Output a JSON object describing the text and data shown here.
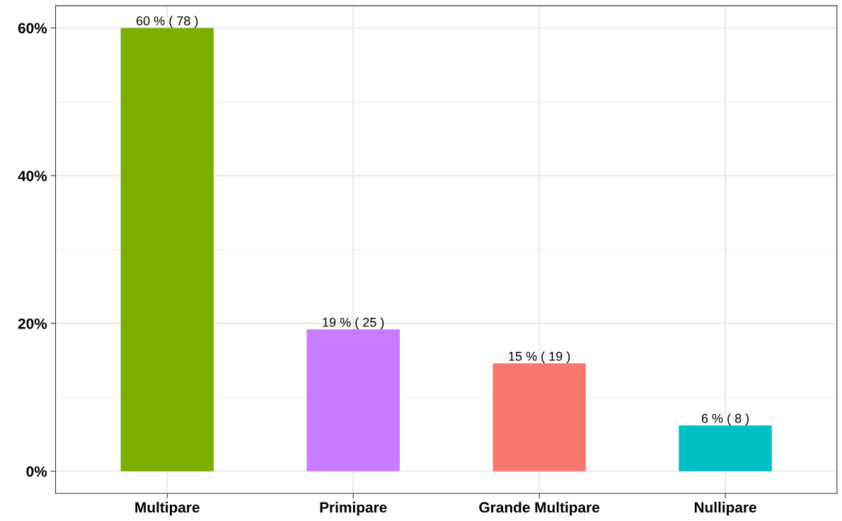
{
  "chart_data": {
    "type": "bar",
    "categories": [
      "Multipare",
      "Primipare",
      "Grande Multipare",
      "Nullipare"
    ],
    "values": [
      60.0,
      19.2,
      14.6,
      6.2
    ],
    "colors": [
      "#7cae00",
      "#c77cff",
      "#f8766d",
      "#00bfc4"
    ],
    "value_labels": [
      "60 % ( 78 )",
      "19 % ( 25 )",
      "15 % ( 19 )",
      "6 % ( 8 )"
    ],
    "ylim": [
      -3,
      63
    ],
    "yticks": [
      {
        "value": 0,
        "label": "0%"
      },
      {
        "value": 20,
        "label": "20%"
      },
      {
        "value": 40,
        "label": "40%"
      },
      {
        "value": 60,
        "label": "60%"
      }
    ],
    "grid": true
  }
}
